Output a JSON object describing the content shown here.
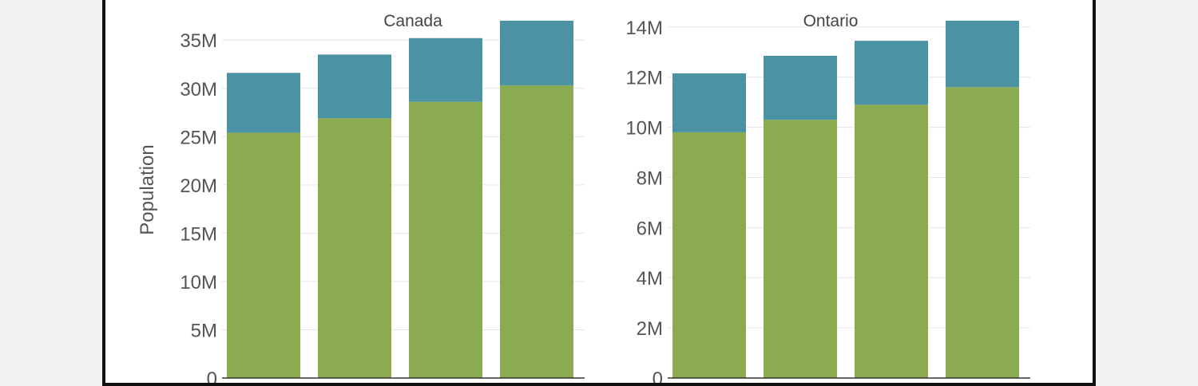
{
  "chart_data": [
    {
      "type": "bar",
      "stacked": true,
      "title": "Canada",
      "ylabel": "Population",
      "ylim": [
        0,
        37000000
      ],
      "yticks": [
        0,
        5000000,
        10000000,
        15000000,
        20000000,
        25000000,
        30000000,
        35000000
      ],
      "ytick_labels": [
        "0",
        "5M",
        "10M",
        "15M",
        "20M",
        "25M",
        "30M",
        "35M"
      ],
      "grid": true,
      "categories": [
        "",
        "",
        "",
        ""
      ],
      "series": [
        {
          "values": [
            25400000,
            26900000,
            28600000,
            30300000
          ],
          "color": "#8bab50"
        },
        {
          "values": [
            6200000,
            6600000,
            6600000,
            6700000
          ],
          "color": "#4a92a4"
        }
      ]
    },
    {
      "type": "bar",
      "stacked": true,
      "title": "Ontario",
      "ylabel": "",
      "ylim": [
        0,
        14250000
      ],
      "yticks": [
        0,
        2000000,
        4000000,
        6000000,
        8000000,
        10000000,
        12000000,
        14000000
      ],
      "ytick_labels": [
        "0",
        "2M",
        "4M",
        "6M",
        "8M",
        "10M",
        "12M",
        "14M"
      ],
      "grid": true,
      "categories": [
        "",
        "",
        "",
        ""
      ],
      "series": [
        {
          "values": [
            9800000,
            10300000,
            10900000,
            11600000
          ],
          "color": "#8bab50"
        },
        {
          "values": [
            2350000,
            2550000,
            2550000,
            2650000
          ],
          "color": "#4a92a4"
        }
      ]
    }
  ]
}
